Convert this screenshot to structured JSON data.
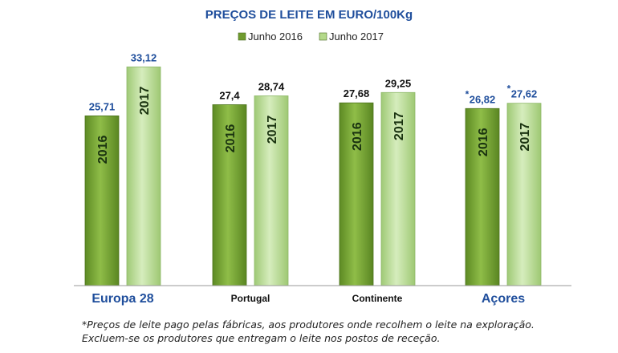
{
  "chart_data": {
    "type": "bar",
    "title": "PREÇOS DE LEITE EM EURO/100Kg",
    "categories": [
      "Europa 28",
      "Portugal",
      "Continente",
      "Açores"
    ],
    "series": [
      {
        "name": "Junho 2016",
        "bar_text": "2016",
        "color": "#6f9b2e",
        "values": [
          25.71,
          27.4,
          27.68,
          26.82
        ],
        "labels": [
          "25,71",
          "27,4",
          "27,68",
          "26,82"
        ]
      },
      {
        "name": "Junho 2017",
        "bar_text": "2017",
        "color": "#b4d98a",
        "values": [
          33.12,
          28.74,
          29.25,
          27.62
        ],
        "labels": [
          "33,12",
          "28,74",
          "29,25",
          "27,62"
        ]
      }
    ],
    "asterisk_marker": "*",
    "asterisk_categories": [
      "Açores"
    ],
    "ylim": [
      0,
      38
    ],
    "legend_position": "top-center",
    "grid": false,
    "colors": {
      "title": "#1f4e9c",
      "category_highlight": "#1f4e9c",
      "value_label_highlight": "#1f4e9c",
      "value_label_default": "#111111",
      "year_text": "#1a3310"
    }
  },
  "footnote": {
    "line1": "*Preços de leite pago pelas fábricas, aos produtores onde recolhem o leite na exploração.",
    "line2": "Excluem-se os produtores que entregam o leite nos postos de receção."
  }
}
